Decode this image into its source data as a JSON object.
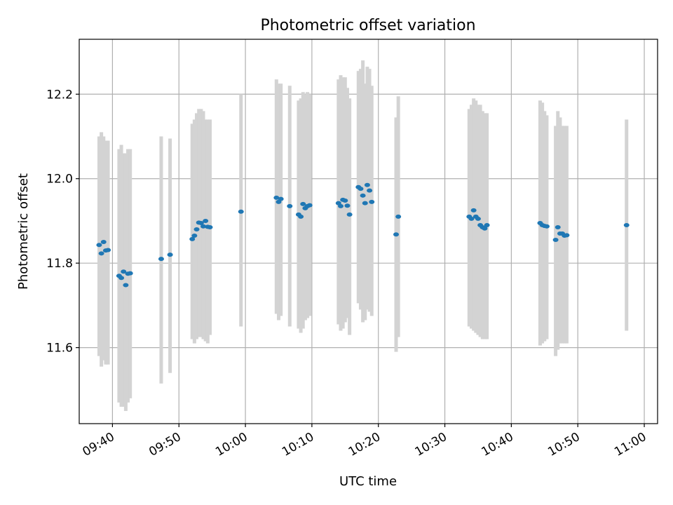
{
  "chart_data": {
    "type": "scatter",
    "title": "Photometric offset variation",
    "xlabel": "UTC time",
    "ylabel": "Photometric offset",
    "x_axis": {
      "type": "time",
      "unit": "HH:MM UTC",
      "range": [
        "09:35",
        "11:02"
      ]
    },
    "y_axis": {
      "range": [
        11.42,
        12.33
      ]
    },
    "xticks": [
      "09:40",
      "09:50",
      "10:00",
      "10:10",
      "10:20",
      "10:30",
      "10:40",
      "10:50",
      "11:00"
    ],
    "yticks": [
      11.6,
      11.8,
      12.0,
      12.2
    ],
    "grid": true,
    "colors": {
      "points": "#1f77b4",
      "error_bars": "#d3d3d3",
      "grid": "#b0b0b0"
    },
    "series": [
      {
        "points": [
          {
            "x": "09:38",
            "y": 11.843,
            "ylo": 11.58,
            "yhi": 12.1
          },
          {
            "x": "09:38:20",
            "y": 11.823,
            "ylo": 11.555,
            "yhi": 12.11
          },
          {
            "x": "09:38:40",
            "y": 11.85,
            "ylo": 11.57,
            "yhi": 12.1
          },
          {
            "x": "09:39",
            "y": 11.83,
            "ylo": 11.56,
            "yhi": 12.09
          },
          {
            "x": "09:39:20",
            "y": 11.831,
            "ylo": 11.56,
            "yhi": 12.09
          },
          {
            "x": "09:41",
            "y": 11.77,
            "ylo": 11.47,
            "yhi": 12.07
          },
          {
            "x": "09:41:20",
            "y": 11.765,
            "ylo": 11.46,
            "yhi": 12.08
          },
          {
            "x": "09:41:40",
            "y": 11.78,
            "ylo": 11.46,
            "yhi": 12.06
          },
          {
            "x": "09:42",
            "y": 11.748,
            "ylo": 11.45,
            "yhi": 12.06
          },
          {
            "x": "09:42:20",
            "y": 11.775,
            "ylo": 11.47,
            "yhi": 12.07
          },
          {
            "x": "09:42:40",
            "y": 11.776,
            "ylo": 11.48,
            "yhi": 12.07
          },
          {
            "x": "09:47:20",
            "y": 11.81,
            "ylo": 11.515,
            "yhi": 12.1
          },
          {
            "x": "09:48:40",
            "y": 11.82,
            "ylo": 11.54,
            "yhi": 12.095
          },
          {
            "x": "09:52",
            "y": 11.857,
            "ylo": 11.62,
            "yhi": 12.13
          },
          {
            "x": "09:52:20",
            "y": 11.865,
            "ylo": 11.61,
            "yhi": 12.14
          },
          {
            "x": "09:52:40",
            "y": 11.88,
            "ylo": 11.62,
            "yhi": 12.155
          },
          {
            "x": "09:53",
            "y": 11.896,
            "ylo": 11.625,
            "yhi": 12.165
          },
          {
            "x": "09:53:20",
            "y": 11.895,
            "ylo": 11.625,
            "yhi": 12.165
          },
          {
            "x": "09:53:40",
            "y": 11.887,
            "ylo": 11.62,
            "yhi": 12.16
          },
          {
            "x": "09:54",
            "y": 11.9,
            "ylo": 11.615,
            "yhi": 12.14
          },
          {
            "x": "09:54:20",
            "y": 11.886,
            "ylo": 11.61,
            "yhi": 12.14
          },
          {
            "x": "09:54:40",
            "y": 11.885,
            "ylo": 11.63,
            "yhi": 12.14
          },
          {
            "x": "09:59:20",
            "y": 11.922,
            "ylo": 11.65,
            "yhi": 12.2
          },
          {
            "x": "10:04:40",
            "y": 11.955,
            "ylo": 11.68,
            "yhi": 12.235
          },
          {
            "x": "10:05",
            "y": 11.945,
            "ylo": 11.665,
            "yhi": 12.225
          },
          {
            "x": "10:05:20",
            "y": 11.952,
            "ylo": 11.675,
            "yhi": 12.225
          },
          {
            "x": "10:06:40",
            "y": 11.935,
            "ylo": 11.65,
            "yhi": 12.22
          },
          {
            "x": "10:08",
            "y": 11.915,
            "ylo": 11.645,
            "yhi": 12.185
          },
          {
            "x": "10:08:20",
            "y": 11.91,
            "ylo": 11.635,
            "yhi": 12.19
          },
          {
            "x": "10:08:40",
            "y": 11.94,
            "ylo": 11.645,
            "yhi": 12.205
          },
          {
            "x": "10:09",
            "y": 11.93,
            "ylo": 11.665,
            "yhi": 12.2
          },
          {
            "x": "10:09:20",
            "y": 11.935,
            "ylo": 11.67,
            "yhi": 12.205
          },
          {
            "x": "10:09:40",
            "y": 11.937,
            "ylo": 11.675,
            "yhi": 12.2
          },
          {
            "x": "10:14",
            "y": 11.942,
            "ylo": 11.655,
            "yhi": 12.235
          },
          {
            "x": "10:14:20",
            "y": 11.935,
            "ylo": 11.64,
            "yhi": 12.245
          },
          {
            "x": "10:14:40",
            "y": 11.95,
            "ylo": 11.645,
            "yhi": 12.24
          },
          {
            "x": "10:15",
            "y": 11.948,
            "ylo": 11.66,
            "yhi": 12.24
          },
          {
            "x": "10:15:20",
            "y": 11.936,
            "ylo": 11.67,
            "yhi": 12.215
          },
          {
            "x": "10:15:40",
            "y": 11.915,
            "ylo": 11.63,
            "yhi": 12.19
          },
          {
            "x": "10:17",
            "y": 11.98,
            "ylo": 11.705,
            "yhi": 12.255
          },
          {
            "x": "10:17:20",
            "y": 11.976,
            "ylo": 11.69,
            "yhi": 12.26
          },
          {
            "x": "10:17:40",
            "y": 11.96,
            "ylo": 11.66,
            "yhi": 12.28
          },
          {
            "x": "10:18",
            "y": 11.942,
            "ylo": 11.665,
            "yhi": 12.225
          },
          {
            "x": "10:18:20",
            "y": 11.985,
            "ylo": 11.69,
            "yhi": 12.265
          },
          {
            "x": "10:18:40",
            "y": 11.972,
            "ylo": 11.685,
            "yhi": 12.26
          },
          {
            "x": "10:19",
            "y": 11.945,
            "ylo": 11.675,
            "yhi": 12.22
          },
          {
            "x": "10:22:40",
            "y": 11.868,
            "ylo": 11.59,
            "yhi": 12.145
          },
          {
            "x": "10:23",
            "y": 11.91,
            "ylo": 11.625,
            "yhi": 12.195
          },
          {
            "x": "10:33:40",
            "y": 11.91,
            "ylo": 11.65,
            "yhi": 12.165
          },
          {
            "x": "10:34",
            "y": 11.905,
            "ylo": 11.645,
            "yhi": 12.175
          },
          {
            "x": "10:34:20",
            "y": 11.925,
            "ylo": 11.64,
            "yhi": 12.19
          },
          {
            "x": "10:34:40",
            "y": 11.91,
            "ylo": 11.635,
            "yhi": 12.185
          },
          {
            "x": "10:35",
            "y": 11.905,
            "ylo": 11.63,
            "yhi": 12.175
          },
          {
            "x": "10:35:20",
            "y": 11.89,
            "ylo": 11.625,
            "yhi": 12.175
          },
          {
            "x": "10:35:40",
            "y": 11.885,
            "ylo": 11.62,
            "yhi": 12.16
          },
          {
            "x": "10:36",
            "y": 11.882,
            "ylo": 11.62,
            "yhi": 12.155
          },
          {
            "x": "10:36:20",
            "y": 11.89,
            "ylo": 11.62,
            "yhi": 12.155
          },
          {
            "x": "10:44:20",
            "y": 11.895,
            "ylo": 11.605,
            "yhi": 12.185
          },
          {
            "x": "10:44:40",
            "y": 11.89,
            "ylo": 11.61,
            "yhi": 12.18
          },
          {
            "x": "10:45",
            "y": 11.888,
            "ylo": 11.615,
            "yhi": 12.16
          },
          {
            "x": "10:45:20",
            "y": 11.887,
            "ylo": 11.62,
            "yhi": 12.15
          },
          {
            "x": "10:46:40",
            "y": 11.855,
            "ylo": 11.58,
            "yhi": 12.125
          },
          {
            "x": "10:47",
            "y": 11.885,
            "ylo": 11.595,
            "yhi": 12.16
          },
          {
            "x": "10:47:20",
            "y": 11.87,
            "ylo": 11.61,
            "yhi": 12.145
          },
          {
            "x": "10:47:40",
            "y": 11.87,
            "ylo": 11.61,
            "yhi": 12.125
          },
          {
            "x": "10:48",
            "y": 11.865,
            "ylo": 11.61,
            "yhi": 12.125
          },
          {
            "x": "10:48:20",
            "y": 11.866,
            "ylo": 11.61,
            "yhi": 12.125
          },
          {
            "x": "10:57:20",
            "y": 11.89,
            "ylo": 11.64,
            "yhi": 12.14
          }
        ]
      }
    ]
  }
}
